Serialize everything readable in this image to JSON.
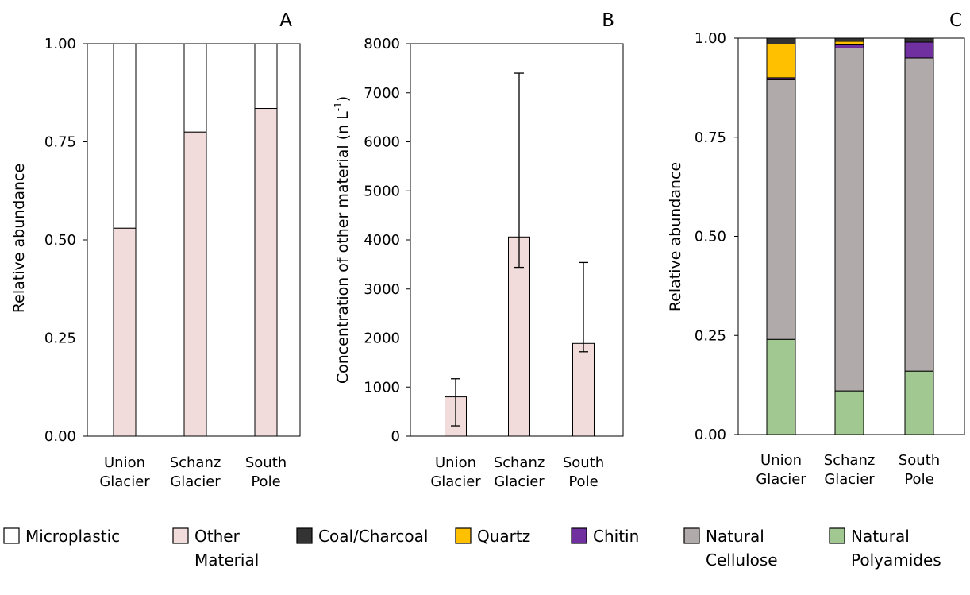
{
  "colors": {
    "microplastic": "#ffffff",
    "other_material": "#f2dcdb",
    "coal_charcoal": "#333333",
    "quartz": "#ffc000",
    "chitin": "#7030a0",
    "natural_cellulose": "#b0aaaa",
    "natural_polyamides": "#a0c890",
    "bar_outline": "#000000"
  },
  "legend": [
    {
      "key": "microplastic",
      "line1": "Microplastic",
      "line2": ""
    },
    {
      "key": "other_material",
      "line1": "Other",
      "line2": "Material"
    },
    {
      "key": "coal_charcoal",
      "line1": "Coal/Charcoal",
      "line2": ""
    },
    {
      "key": "quartz",
      "line1": "Quartz",
      "line2": ""
    },
    {
      "key": "chitin",
      "line1": "Chitin",
      "line2": ""
    },
    {
      "key": "natural_cellulose",
      "line1": "Natural",
      "line2": "Cellulose"
    },
    {
      "key": "natural_polyamides",
      "line1": "Natural",
      "line2": "Polyamides"
    }
  ],
  "chart_data": [
    {
      "panel_label": "A",
      "type": "bar",
      "stacked": true,
      "categories": [
        {
          "line1": "Union",
          "line2": "Glacier"
        },
        {
          "line1": "Schanz",
          "line2": "Glacier"
        },
        {
          "line1": "South",
          "line2": "Pole"
        }
      ],
      "ylabel": "Relative abundance",
      "ylim": [
        0,
        1
      ],
      "yticks": [
        "0.00",
        "0.25",
        "0.50",
        "0.75",
        "1.00"
      ],
      "series": [
        {
          "key": "other_material",
          "values": [
            0.53,
            0.775,
            0.835
          ]
        },
        {
          "key": "microplastic",
          "values": [
            0.47,
            0.225,
            0.165
          ]
        }
      ]
    },
    {
      "panel_label": "B",
      "type": "bar",
      "categories": [
        {
          "line1": "Union",
          "line2": "Glacier"
        },
        {
          "line1": "Schanz",
          "line2": "Glacier"
        },
        {
          "line1": "South",
          "line2": "Pole"
        }
      ],
      "ylabel": "Concentration of other material (n L",
      "ylabel_sup": "-1",
      "ylabel_end": ")",
      "ylim": [
        0,
        8000
      ],
      "yticks": [
        "0",
        "1000",
        "2000",
        "3000",
        "4000",
        "5000",
        "6000",
        "7000",
        "8000"
      ],
      "series": [
        {
          "key": "other_material",
          "values": [
            800,
            4060,
            1890
          ],
          "err_low": [
            210,
            3440,
            1720
          ],
          "err_high": [
            1170,
            7400,
            3540
          ]
        }
      ]
    },
    {
      "panel_label": "C",
      "type": "bar",
      "stacked": true,
      "categories": [
        {
          "line1": "Union",
          "line2": "Glacier"
        },
        {
          "line1": "Schanz",
          "line2": "Glacier"
        },
        {
          "line1": "South",
          "line2": "Pole"
        }
      ],
      "ylabel": "Relative abundance",
      "ylim": [
        0,
        1
      ],
      "yticks": [
        "0.00",
        "0.25",
        "0.50",
        "0.75",
        "1.00"
      ],
      "series": [
        {
          "key": "natural_polyamides",
          "values": [
            0.24,
            0.11,
            0.16
          ]
        },
        {
          "key": "natural_cellulose",
          "values": [
            0.655,
            0.865,
            0.79
          ]
        },
        {
          "key": "chitin",
          "values": [
            0.005,
            0.008,
            0.04
          ]
        },
        {
          "key": "quartz",
          "values": [
            0.085,
            0.009,
            0.0
          ]
        },
        {
          "key": "coal_charcoal",
          "values": [
            0.015,
            0.008,
            0.01
          ]
        }
      ]
    }
  ]
}
